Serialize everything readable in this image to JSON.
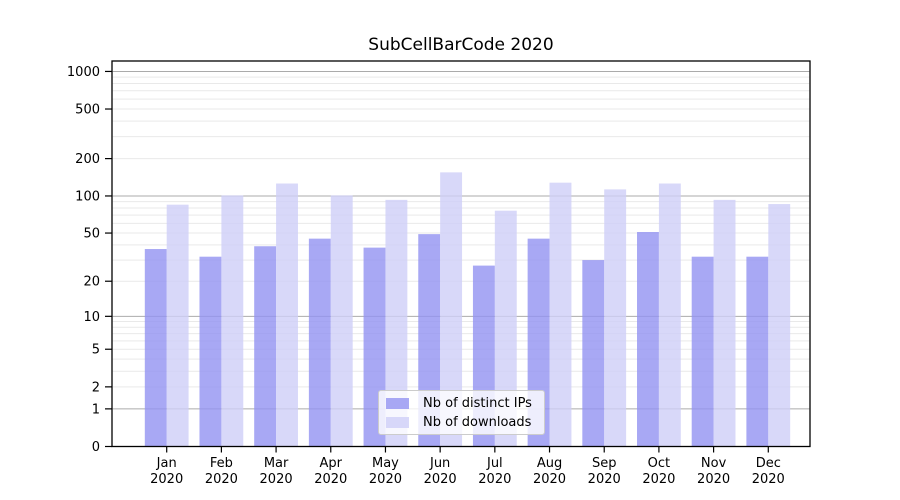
{
  "chart_data": {
    "type": "bar",
    "title": "SubCellBarCode 2020",
    "xlabel": "",
    "ylabel": "",
    "categories": [
      "Jan",
      "Feb",
      "Mar",
      "Apr",
      "May",
      "Jun",
      "Jul",
      "Aug",
      "Sep",
      "Oct",
      "Nov",
      "Dec"
    ],
    "x_tick_year": "2020",
    "series": [
      {
        "name": "Nb of distinct IPs",
        "color": "rgba(146,146,241,0.8)",
        "values": [
          37,
          32,
          39,
          45,
          38,
          49,
          27,
          45,
          30,
          51,
          32,
          32
        ]
      },
      {
        "name": "Nb of downloads",
        "color": "rgba(206,206,247,0.8)",
        "values": [
          85,
          101,
          126,
          101,
          93,
          155,
          76,
          128,
          113,
          126,
          93,
          86
        ]
      }
    ],
    "y_scale": "log1p",
    "ylim": [
      0,
      1200
    ],
    "y_ticks": [
      0,
      1,
      2,
      5,
      10,
      20,
      50,
      100,
      200,
      500,
      1000
    ],
    "y_major_grid": [
      1,
      10,
      100,
      1000
    ],
    "y_minor_grid": [
      2,
      3,
      4,
      5,
      6,
      7,
      8,
      9,
      20,
      30,
      40,
      50,
      60,
      70,
      80,
      90,
      200,
      300,
      400,
      500,
      600,
      700,
      800,
      900
    ],
    "grid": "on",
    "legend_position": "lower center",
    "colors": {
      "grid_major": "#ababab",
      "grid_minor": "#e9e9e9",
      "axis": "#000000",
      "series1_solid": "#a5a5f3",
      "series2_solid": "#d8d8f8"
    }
  }
}
